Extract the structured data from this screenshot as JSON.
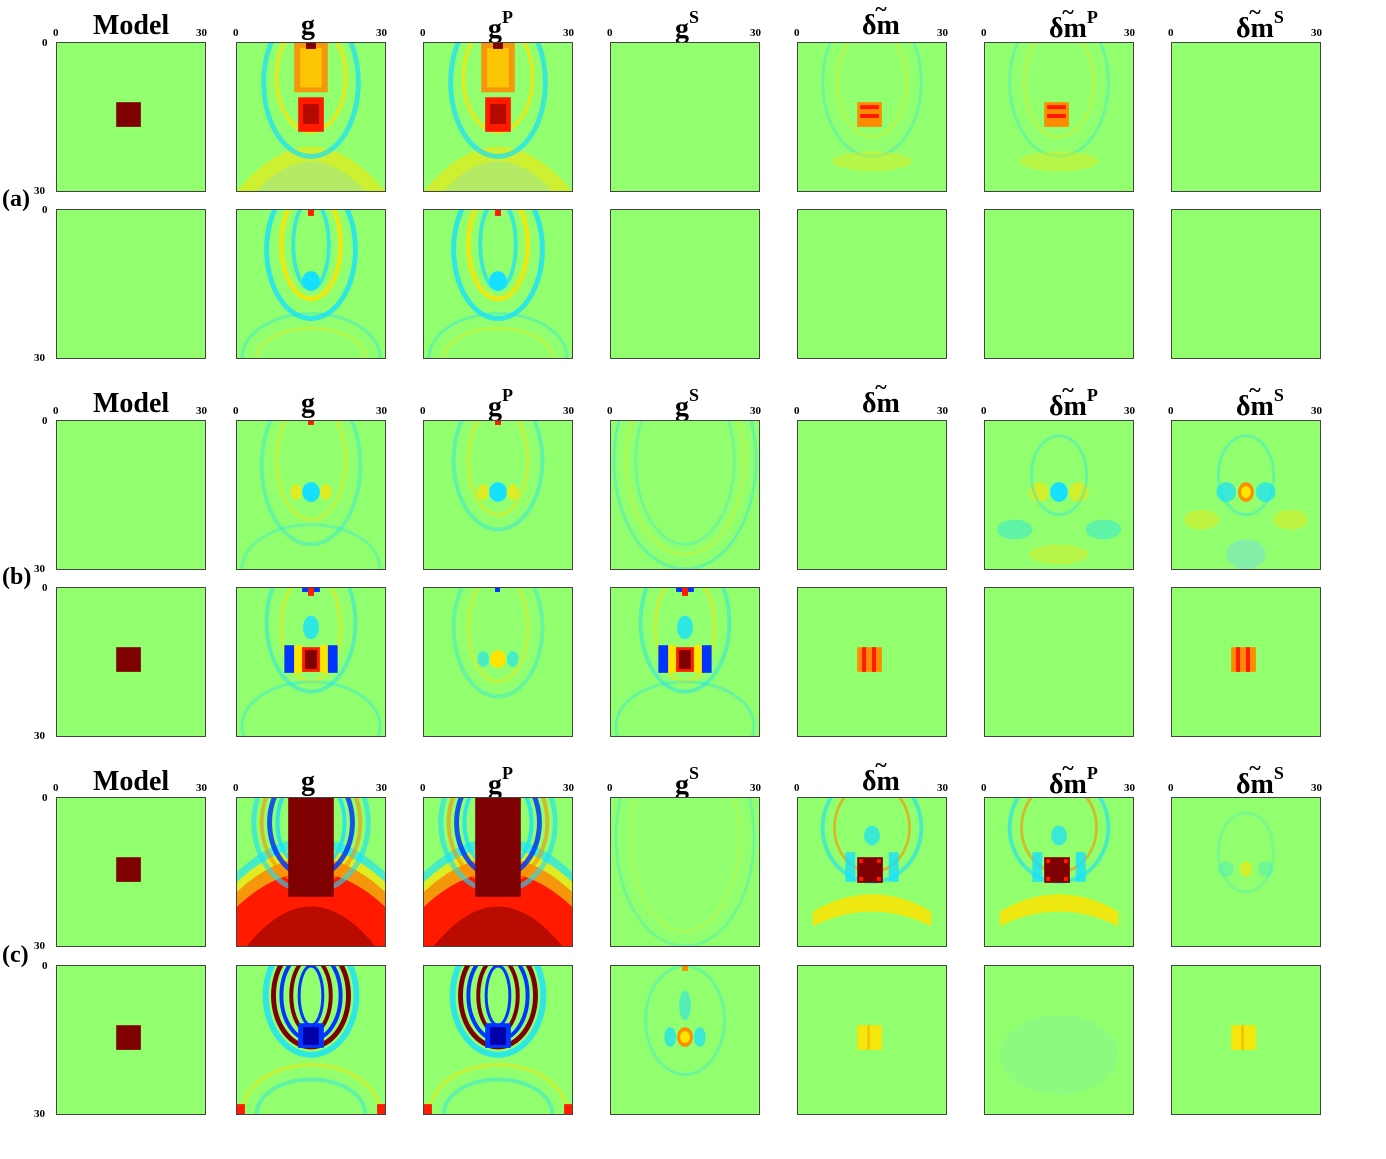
{
  "columns": [
    {
      "key": "model",
      "base": "Model",
      "sup": ""
    },
    {
      "key": "g",
      "base": "g",
      "sup": ""
    },
    {
      "key": "gP",
      "base": "g",
      "sup": "P"
    },
    {
      "key": "gS",
      "base": "g",
      "sup": "S"
    },
    {
      "key": "dm",
      "base": "δm",
      "sup": ""
    },
    {
      "key": "dmP",
      "base": "δm",
      "sup": "P"
    },
    {
      "key": "dmS",
      "base": "δm",
      "sup": "S"
    }
  ],
  "ticks": {
    "start": "0",
    "end": "30"
  },
  "groups": [
    {
      "label": "(a)",
      "rows": [
        [
          "box-dark-red",
          "g-a1",
          "g-a1",
          "flat",
          "dm-a1",
          "dm-a1",
          "flat"
        ],
        [
          "flat",
          "g-a2",
          "g-a2",
          "flat",
          "flat",
          "flat",
          "flat"
        ]
      ]
    },
    {
      "label": "(b)",
      "rows": [
        [
          "flat",
          "g-b1",
          "gP-b1",
          "gS-b1",
          "flat",
          "dmP-b1",
          "dmS-b1"
        ],
        [
          "box-dark-red",
          "g-b2",
          "gP-b2",
          "g-b2",
          "box-orange-stripes",
          "flat",
          "box-orange-stripes"
        ]
      ]
    },
    {
      "label": "(c)",
      "rows": [
        [
          "box-dark-red",
          "g-c1",
          "g-c1",
          "gS-c1",
          "dm-c1",
          "dm-c1",
          "dmS-c1"
        ],
        [
          "box-dark-red",
          "g-c2",
          "g-c2",
          "gS-c2",
          "box-yellow",
          "flat-faint",
          "box-yellow"
        ]
      ]
    }
  ],
  "colormap": {
    "background": "#91ff6e",
    "dark_red": "#7f0000",
    "red": "#ff1a00",
    "orange": "#ff8c00",
    "yellow": "#ffe400",
    "cyan": "#15e0ff",
    "light_blue": "#6fd8ff",
    "blue": "#0035ff",
    "dark_blue": "#0000a8"
  }
}
